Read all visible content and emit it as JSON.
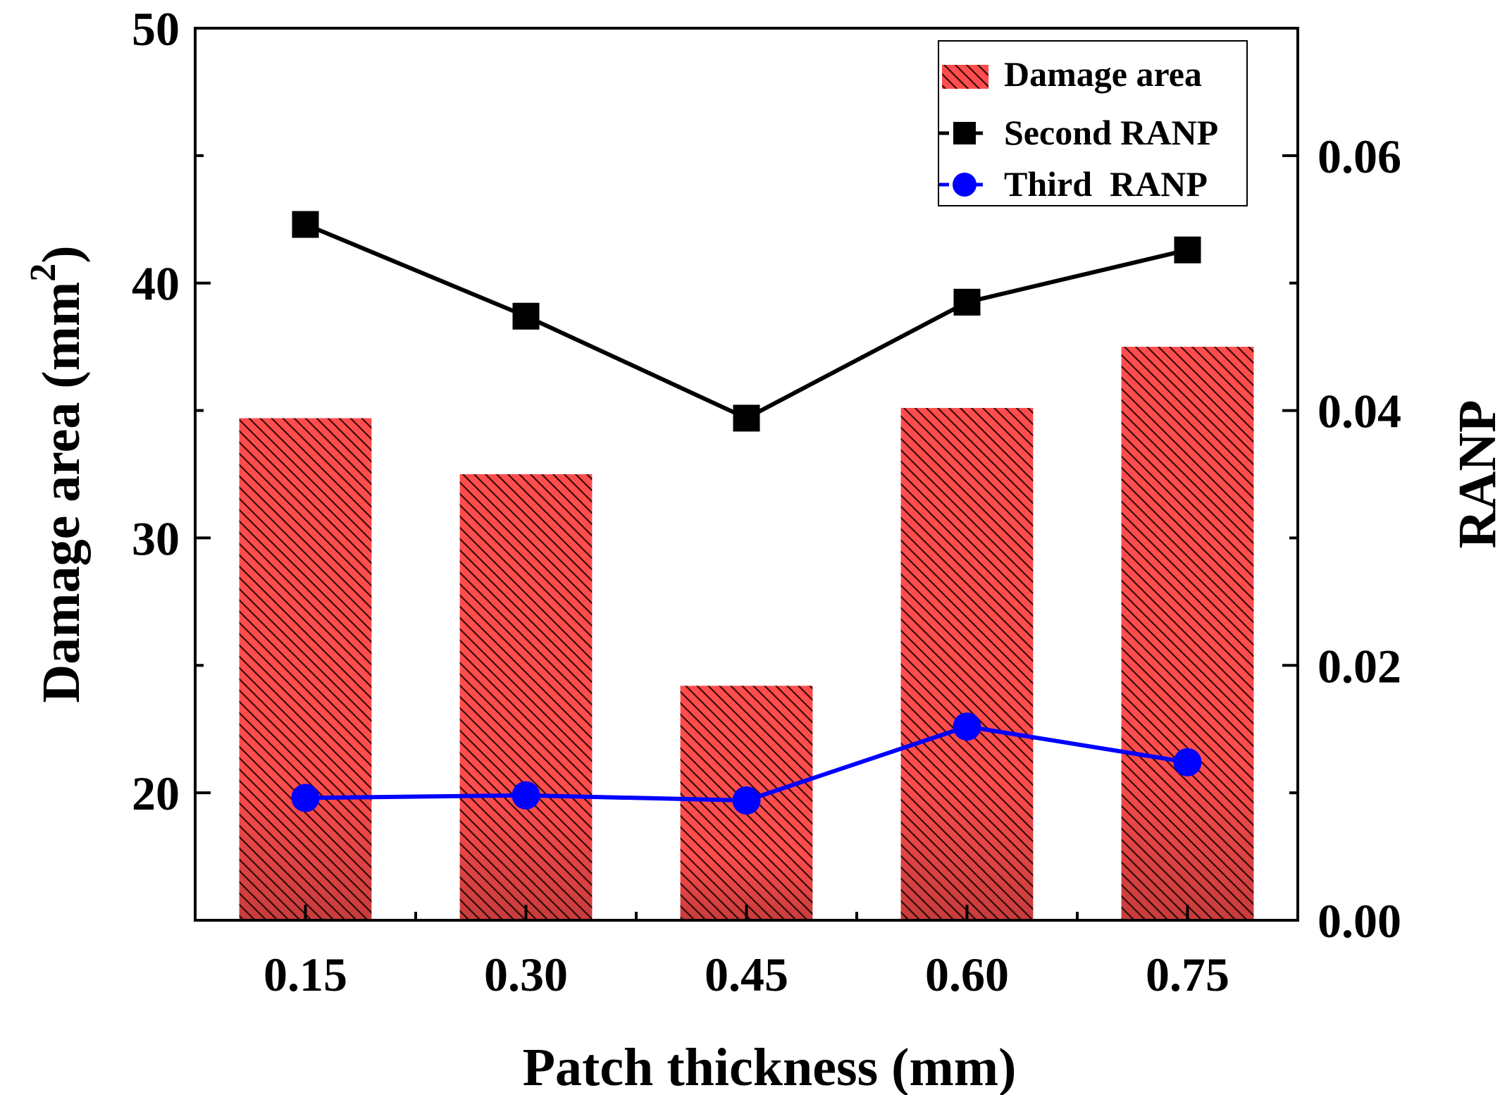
{
  "chart_data": {
    "type": "bar",
    "categories": [
      "0.15",
      "0.30",
      "0.45",
      "0.60",
      "0.75"
    ],
    "xlabel": "Patch thickness (mm)",
    "ylabel": "Damage area (mm",
    "ylabel_superscript": "2",
    "ylabel_close": ")",
    "y2label": "RANP",
    "ylim": [
      15,
      50
    ],
    "y2lim": [
      0,
      0.07
    ],
    "yticks": [
      20,
      30,
      40,
      50
    ],
    "yticks_labels": [
      "20",
      "30",
      "40",
      "50"
    ],
    "y2ticks": [
      0,
      0.02,
      0.04,
      0.06
    ],
    "y2ticks_labels": [
      "0.00",
      "0.02",
      "0.04",
      "0.06"
    ],
    "series": [
      {
        "name": "Damage area",
        "kind": "bar",
        "axis": "left",
        "values": [
          34.7,
          32.5,
          24.2,
          35.1,
          37.5
        ],
        "color": "#ff4d4d",
        "hatch_color": "#3a0a0a"
      },
      {
        "name": "Second RANP",
        "kind": "line",
        "axis": "right",
        "marker": "square",
        "values": [
          0.0546,
          0.0474,
          0.0394,
          0.0485,
          0.0526
        ],
        "color": "#000000"
      },
      {
        "name": "Third  RANP",
        "kind": "line",
        "axis": "right",
        "marker": "circle",
        "values": [
          0.0096,
          0.0098,
          0.0094,
          0.0152,
          0.0124
        ],
        "color": "#0000ff"
      }
    ],
    "legend_position": "top-right"
  }
}
